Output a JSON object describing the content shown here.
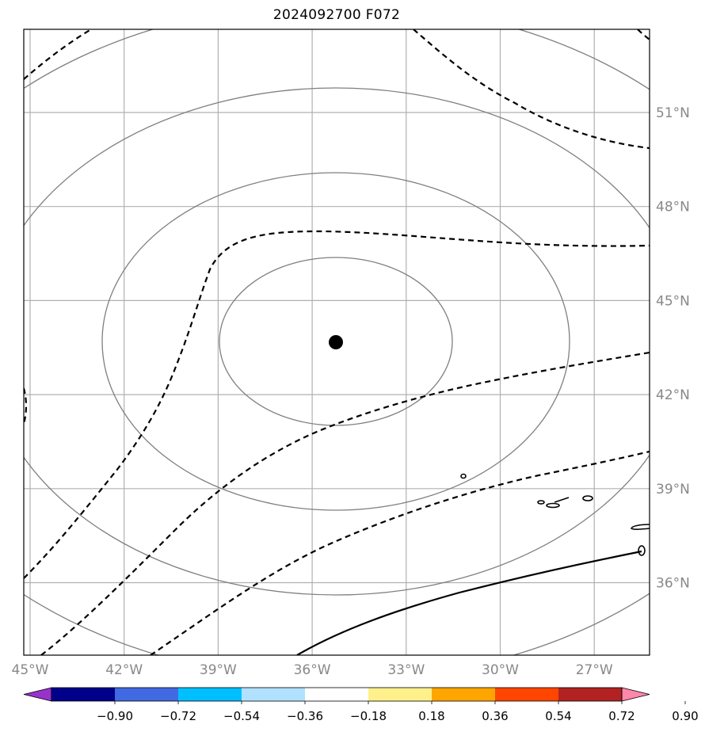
{
  "map": {
    "title": "2024092700 F072",
    "center_marker": {
      "lon": -35.3,
      "lat": 43.7
    },
    "lon_ticks": [
      {
        "value": -45,
        "label": "45°W"
      },
      {
        "value": -42,
        "label": "42°W"
      },
      {
        "value": -39,
        "label": "39°W"
      },
      {
        "value": -36,
        "label": "36°W"
      },
      {
        "value": -33,
        "label": "33°W"
      },
      {
        "value": -30,
        "label": "30°W"
      },
      {
        "value": -27,
        "label": "27°W"
      }
    ],
    "lat_ticks": [
      {
        "value": 51,
        "label": "51°N"
      },
      {
        "value": 48,
        "label": "48°N"
      },
      {
        "value": 45,
        "label": "45°N"
      },
      {
        "value": 42,
        "label": "42°N"
      },
      {
        "value": 39,
        "label": "39°N"
      },
      {
        "value": 36,
        "label": "36°N"
      }
    ],
    "colors": {
      "grid": "#b0b0b0",
      "range_rings": "#7f7f7f",
      "contours": "#000000",
      "marker": "#000000"
    }
  },
  "colorbar": {
    "levels": [
      "−0.90",
      "−0.72",
      "−0.54",
      "−0.36",
      "−0.18",
      "0.18",
      "0.36",
      "0.54",
      "0.72",
      "0.90"
    ],
    "colors": [
      "#9932cc",
      "#00008b",
      "#4169e1",
      "#00bfff",
      "#b0e2ff",
      "#ffffff",
      "#fff08c",
      "#ffa500",
      "#ff4500",
      "#b22222",
      "#ff88aa"
    ]
  }
}
